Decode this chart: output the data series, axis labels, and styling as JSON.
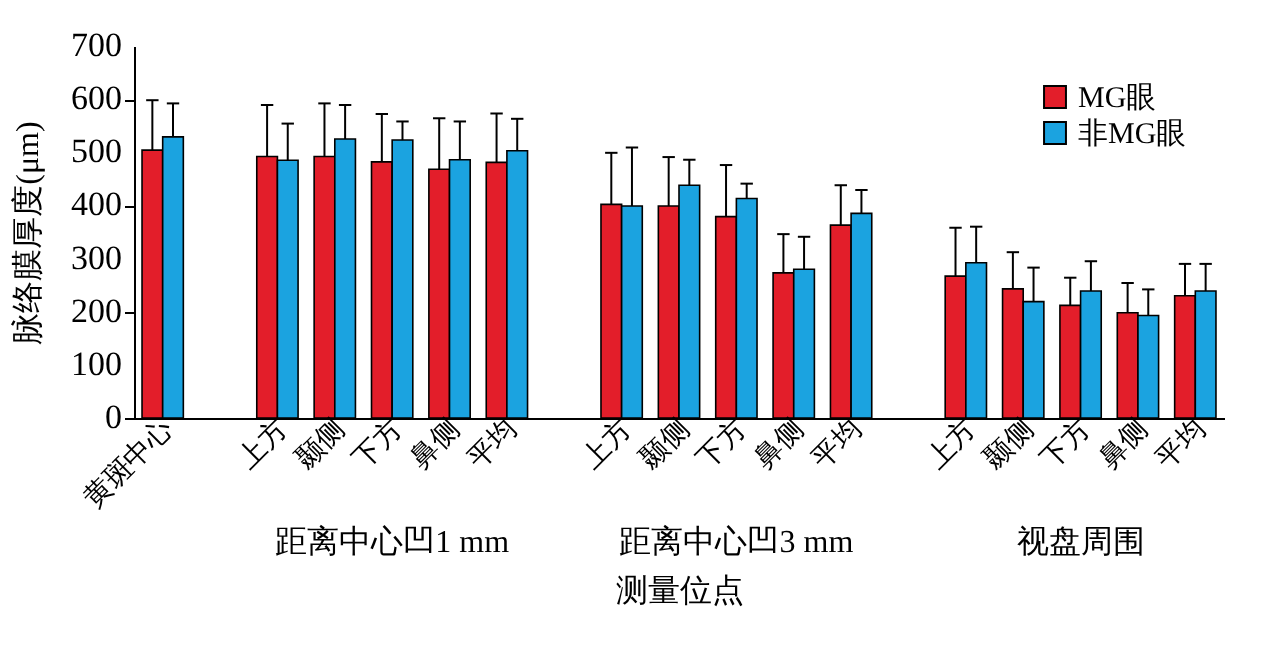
{
  "chart_data": {
    "type": "bar",
    "ylabel": "脉络膜厚度(μm)",
    "xlabel": "测量位点",
    "categories": [
      "黄斑中心",
      null,
      "上方",
      "颞侧",
      "下方",
      "鼻侧",
      "平均",
      null,
      "上方",
      "颞侧",
      "下方",
      "鼻侧",
      "平均",
      null,
      "上方",
      "颞侧",
      "下方",
      "鼻侧",
      "平均"
    ],
    "series": [
      {
        "name": "MG眼",
        "color": "#e31e2a",
        "values": [
          504,
          null,
          492,
          492,
          482,
          468,
          481,
          null,
          402,
          399,
          379,
          273,
          363,
          null,
          267,
          243,
          212,
          198,
          230
        ],
        "errors": [
          [
            504,
            598
          ],
          null,
          [
            492,
            589
          ],
          [
            492,
            592
          ],
          [
            482,
            572
          ],
          [
            468,
            564
          ],
          [
            481,
            573
          ],
          null,
          [
            402,
            499
          ],
          [
            399,
            491
          ],
          [
            379,
            476
          ],
          [
            273,
            346
          ],
          [
            363,
            438
          ],
          null,
          [
            267,
            358
          ],
          [
            243,
            312
          ],
          [
            212,
            264
          ],
          [
            198,
            254
          ],
          [
            230,
            290
          ]
        ]
      },
      {
        "name": "非MG眼",
        "color": "#1ba3e0",
        "values": [
          529,
          null,
          485,
          525,
          523,
          486,
          503,
          null,
          399,
          438,
          413,
          280,
          385,
          null,
          292,
          219,
          239,
          193,
          239
        ],
        "errors": [
          [
            529,
            592
          ],
          null,
          [
            485,
            554
          ],
          [
            525,
            589
          ],
          [
            523,
            558
          ],
          [
            486,
            558
          ],
          [
            503,
            563
          ],
          null,
          [
            399,
            509
          ],
          [
            438,
            486
          ],
          [
            413,
            441
          ],
          [
            280,
            341
          ],
          [
            385,
            429
          ],
          null,
          [
            292,
            360
          ],
          [
            219,
            283
          ],
          [
            239,
            295
          ],
          [
            193,
            242
          ],
          [
            239,
            290
          ]
        ]
      }
    ],
    "ylim": [
      0,
      700
    ],
    "yticks": [
      0,
      100,
      200,
      300,
      400,
      500,
      600,
      700
    ],
    "grid": false,
    "legend": "top right",
    "annotations": [
      "距离中心凹1 mm",
      "距离中心凹3 mm",
      "视盘周围"
    ]
  }
}
